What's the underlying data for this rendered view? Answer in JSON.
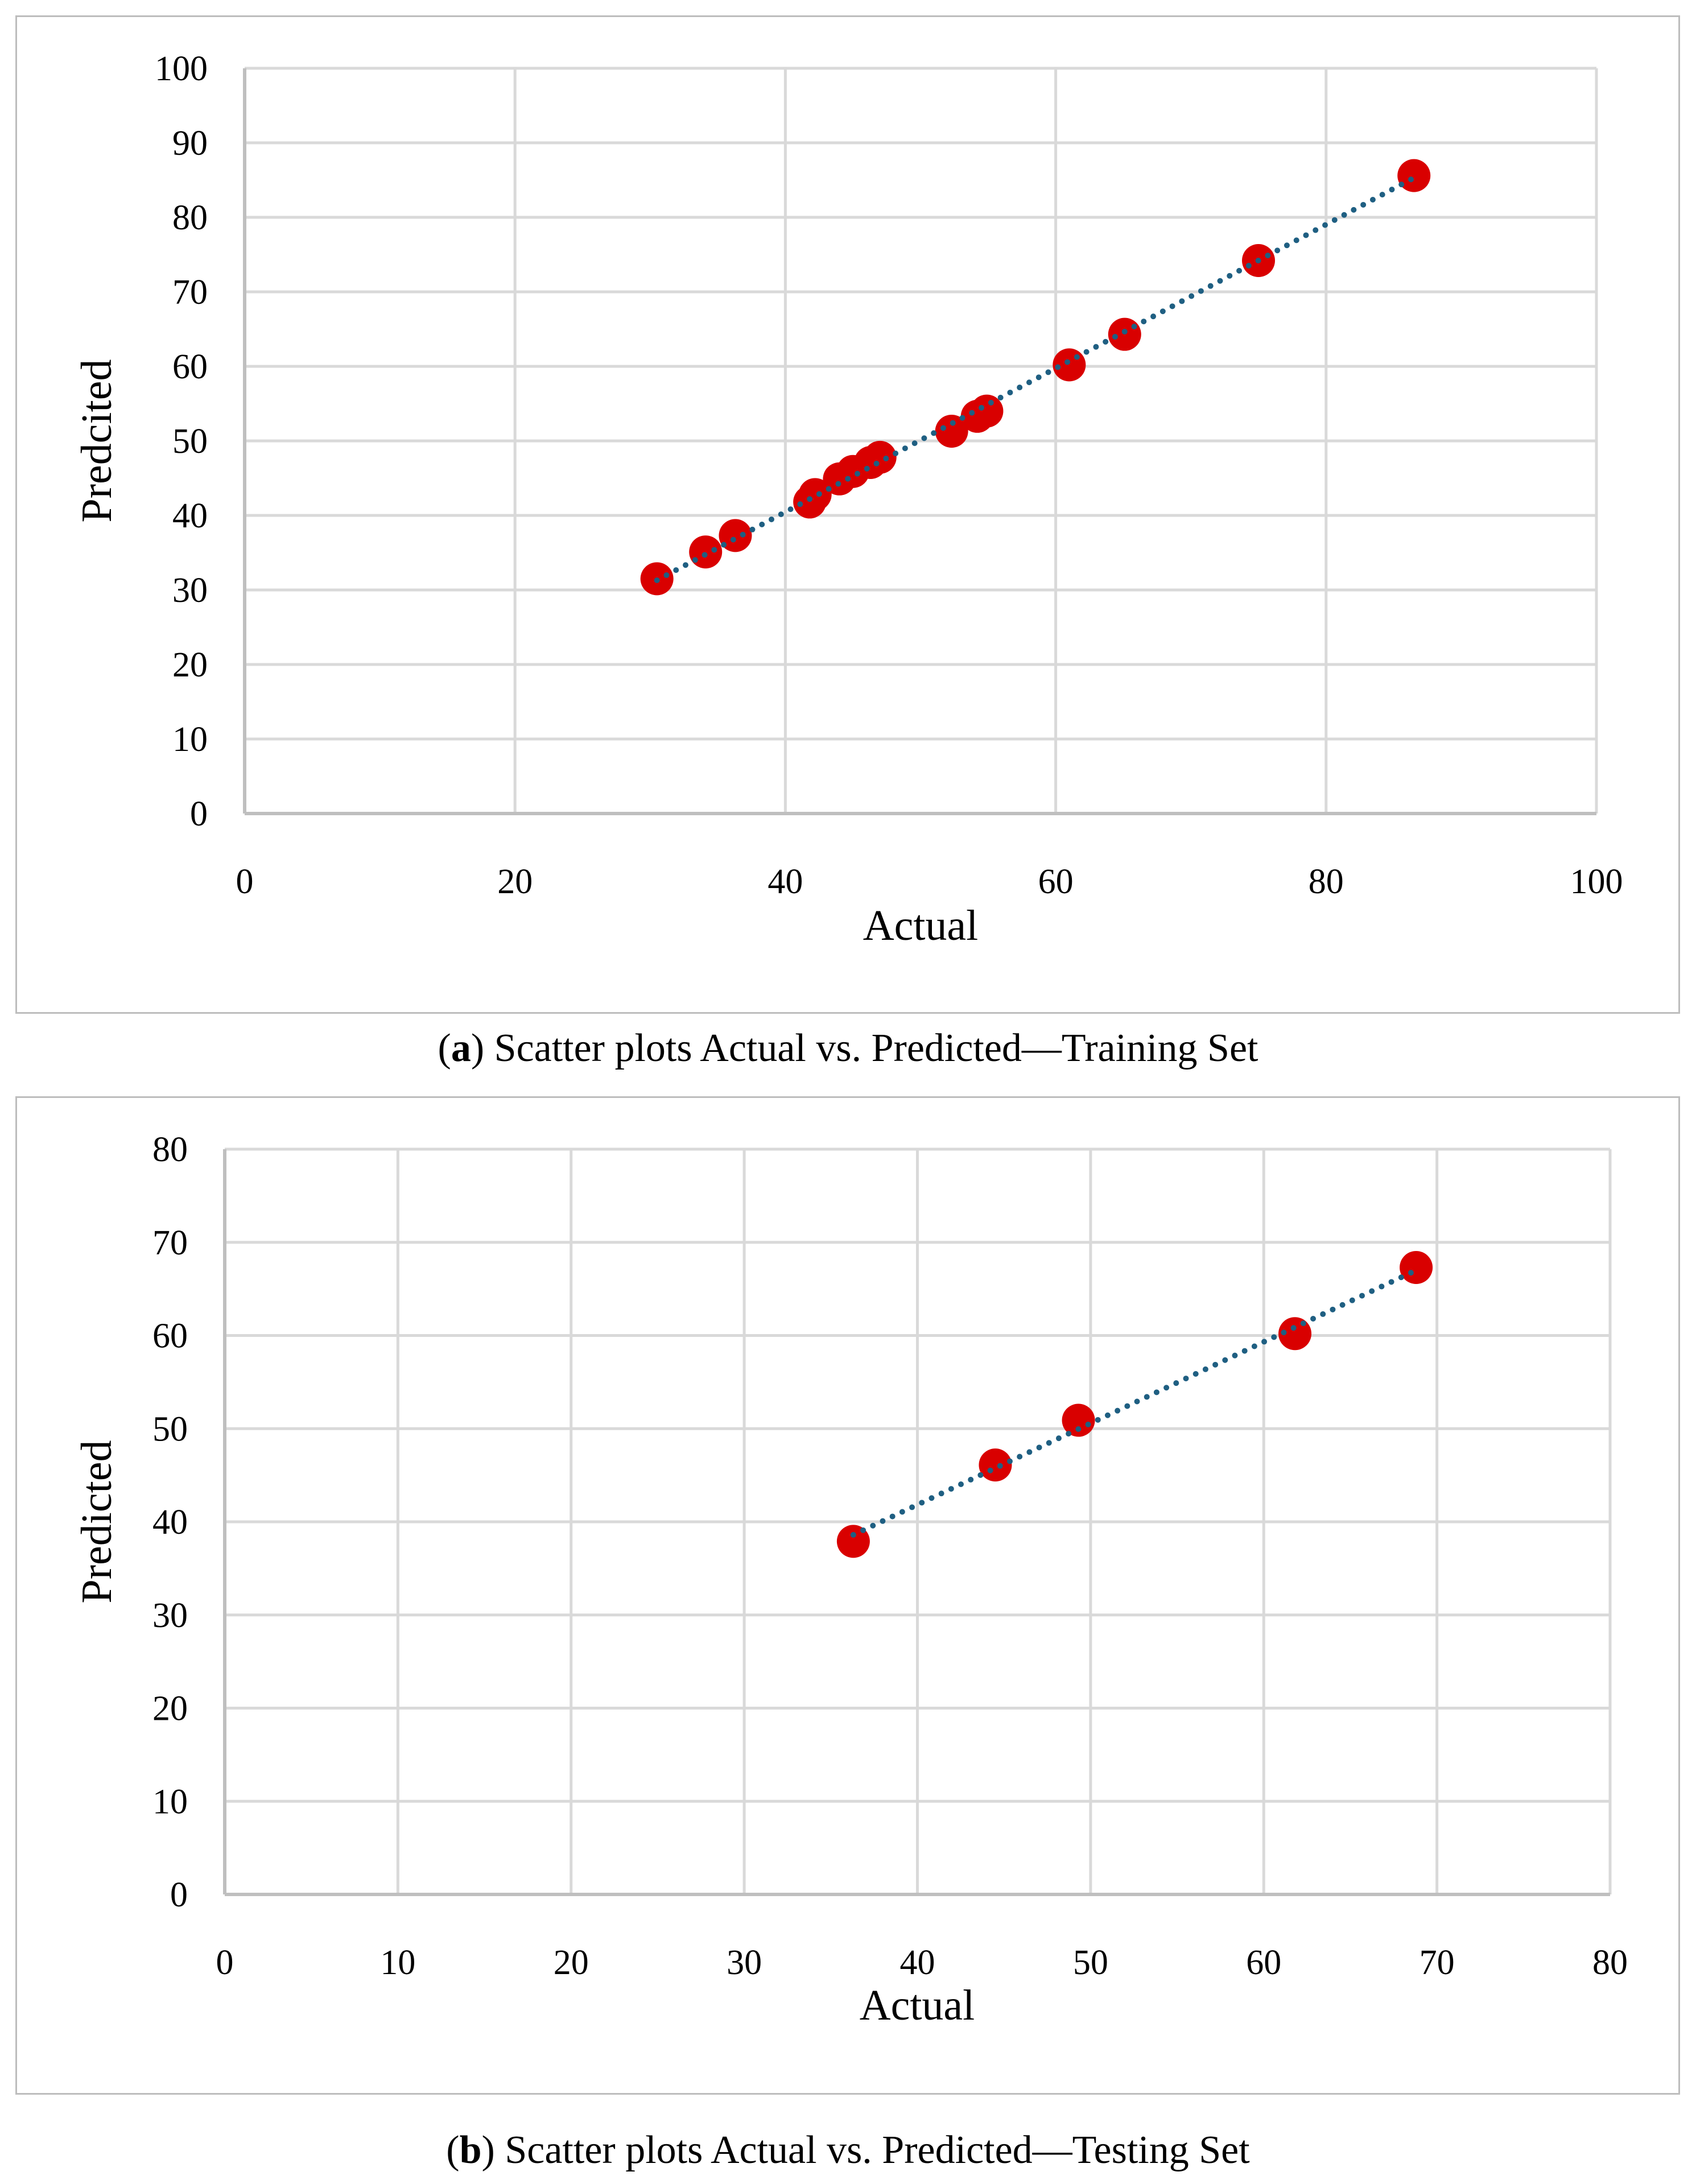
{
  "chart_data": [
    {
      "type": "scatter",
      "title": "",
      "xlabel": "Actual",
      "ylabel": "Predcited",
      "xlim": [
        0,
        100
      ],
      "ylim": [
        0,
        100
      ],
      "xticks": [
        "0",
        "20",
        "40",
        "60",
        "80",
        "100"
      ],
      "yticks": [
        "0",
        "10",
        "20",
        "30",
        "40",
        "50",
        "60",
        "70",
        "80",
        "90",
        "100"
      ],
      "grid": true,
      "marker_color": "#d90000",
      "trendline_color": "#1f5f82",
      "trendline": {
        "style": "dotted",
        "x": [
          30.5,
          86.5
        ],
        "y": [
          31.3,
          85.3
        ]
      },
      "points": [
        {
          "x": 30.5,
          "y": 31.5
        },
        {
          "x": 34.1,
          "y": 35.1
        },
        {
          "x": 36.3,
          "y": 37.3
        },
        {
          "x": 41.8,
          "y": 41.8
        },
        {
          "x": 42.2,
          "y": 42.8
        },
        {
          "x": 44.0,
          "y": 44.9
        },
        {
          "x": 45.0,
          "y": 45.9
        },
        {
          "x": 46.3,
          "y": 47.1
        },
        {
          "x": 47.0,
          "y": 47.8
        },
        {
          "x": 52.3,
          "y": 51.3
        },
        {
          "x": 54.2,
          "y": 53.3
        },
        {
          "x": 54.9,
          "y": 54.0
        },
        {
          "x": 61.0,
          "y": 60.2
        },
        {
          "x": 65.1,
          "y": 64.3
        },
        {
          "x": 75.0,
          "y": 74.2
        },
        {
          "x": 86.5,
          "y": 85.6
        }
      ]
    },
    {
      "type": "scatter",
      "title": "",
      "xlabel": "Actual",
      "ylabel": "Predicted",
      "xlim": [
        0,
        80
      ],
      "ylim": [
        0,
        80
      ],
      "xticks": [
        "0",
        "10",
        "20",
        "30",
        "40",
        "50",
        "60",
        "70",
        "80"
      ],
      "yticks": [
        "0",
        "10",
        "20",
        "30",
        "40",
        "50",
        "60",
        "70",
        "80"
      ],
      "grid": true,
      "marker_color": "#d90000",
      "trendline_color": "#1f5f82",
      "trendline": {
        "style": "dotted",
        "x": [
          36.3,
          68.8
        ],
        "y": [
          38.6,
          67.0
        ]
      },
      "points": [
        {
          "x": 36.3,
          "y": 37.9
        },
        {
          "x": 44.5,
          "y": 46.1
        },
        {
          "x": 49.3,
          "y": 50.9
        },
        {
          "x": 61.8,
          "y": 60.2
        },
        {
          "x": 68.8,
          "y": 67.3
        }
      ]
    }
  ],
  "captions": [
    {
      "label": "a",
      "text": " Scatter plots Actual vs. Predicted—Training Set"
    },
    {
      "label": "b",
      "text": " Scatter plots Actual vs. Predicted—Testing Set"
    }
  ]
}
